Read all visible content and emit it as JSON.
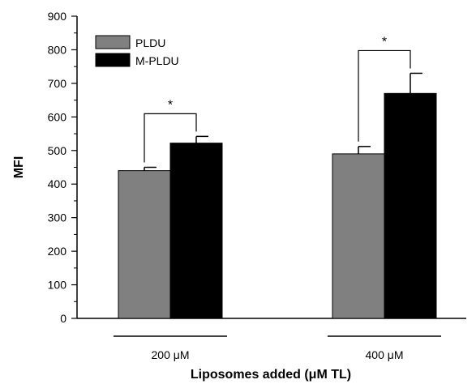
{
  "chart_data": {
    "type": "bar",
    "title": "",
    "xlabel": "Liposomes added (μM TL)",
    "ylabel": "MFI",
    "ylim": [
      0,
      900
    ],
    "yticks": [
      0,
      100,
      200,
      300,
      400,
      500,
      600,
      700,
      800,
      900
    ],
    "categories": [
      "200 μM",
      "400 μM"
    ],
    "series": [
      {
        "name": "PLDU",
        "color": "#808080",
        "values": [
          440,
          490
        ],
        "errors": [
          10,
          22
        ]
      },
      {
        "name": "M-PLDU",
        "color": "#000000",
        "values": [
          522,
          670
        ],
        "errors": [
          20,
          60
        ]
      }
    ],
    "legend_position": "top-left",
    "grid": false,
    "annotations": [
      {
        "category": "200 μM",
        "text": "*"
      },
      {
        "category": "400 μM",
        "text": "*"
      }
    ]
  }
}
